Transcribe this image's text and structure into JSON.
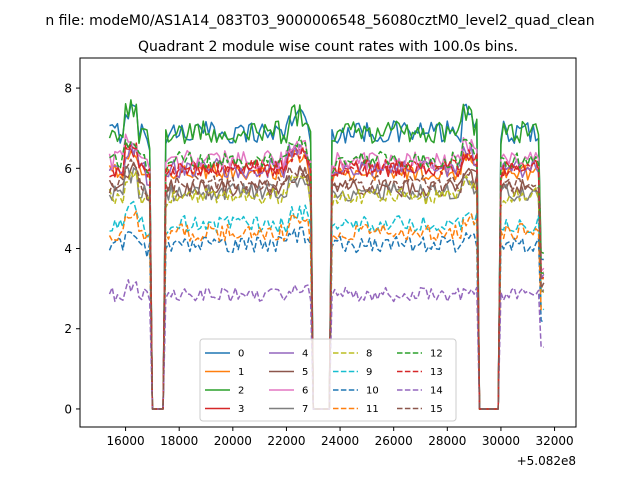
{
  "chart_data": {
    "type": "line",
    "suptitle": "n file: modeM0/AS1A14_083T03_9000006548_56080cztM0_level2_quad_clean",
    "title": "Quadrant 2 module wise count rates with 100.0s bins.",
    "xlabel": "",
    "ylabel": "",
    "x_offset_label": "+5.082e8",
    "xlim": [
      14300,
      32800
    ],
    "ylim": [
      -0.45,
      8.75
    ],
    "xticks": [
      16000,
      18000,
      20000,
      22000,
      24000,
      26000,
      28000,
      30000,
      32000
    ],
    "xtick_labels": [
      "16000",
      "18000",
      "20000",
      "22000",
      "24000",
      "26000",
      "28000",
      "30000",
      "32000"
    ],
    "yticks": [
      0,
      2,
      4,
      6,
      8
    ],
    "ytick_labels": [
      "0",
      "2",
      "4",
      "6",
      "8"
    ],
    "legend": {
      "placement": "lower-center",
      "columns": 4
    },
    "data_start": 15400,
    "data_end": 31600,
    "bin_width": 100,
    "gaps": [
      [
        17000,
        17400
      ],
      [
        23000,
        23600
      ],
      [
        29200,
        29900
      ]
    ],
    "series": [
      {
        "name": "0",
        "color": "#1f77b4",
        "dashed": false,
        "level": 6.9,
        "noise": 0.28
      },
      {
        "name": "1",
        "color": "#ff7f0e",
        "dashed": false,
        "level": 5.9,
        "noise": 0.2
      },
      {
        "name": "2",
        "color": "#2ca02c",
        "dashed": false,
        "level": 6.9,
        "noise": 0.28
      },
      {
        "name": "3",
        "color": "#d62728",
        "dashed": false,
        "level": 6.0,
        "noise": 0.22
      },
      {
        "name": "4",
        "color": "#9467bd",
        "dashed": false,
        "level": 6.0,
        "noise": 0.25
      },
      {
        "name": "5",
        "color": "#8c564b",
        "dashed": false,
        "level": 5.5,
        "noise": 0.22
      },
      {
        "name": "6",
        "color": "#e377c2",
        "dashed": false,
        "level": 6.2,
        "noise": 0.25
      },
      {
        "name": "7",
        "color": "#7f7f7f",
        "dashed": false,
        "level": 5.4,
        "noise": 0.22
      },
      {
        "name": "8",
        "color": "#bcbd22",
        "dashed": true,
        "level": 5.3,
        "noise": 0.22
      },
      {
        "name": "9",
        "color": "#17becf",
        "dashed": true,
        "level": 4.6,
        "noise": 0.22
      },
      {
        "name": "10",
        "color": "#1f77b4",
        "dashed": true,
        "level": 4.1,
        "noise": 0.2
      },
      {
        "name": "11",
        "color": "#ff7f0e",
        "dashed": true,
        "level": 4.4,
        "noise": 0.22
      },
      {
        "name": "12",
        "color": "#2ca02c",
        "dashed": true,
        "level": 6.2,
        "noise": 0.22
      },
      {
        "name": "13",
        "color": "#d62728",
        "dashed": true,
        "level": 6.0,
        "noise": 0.22
      },
      {
        "name": "14",
        "color": "#9467bd",
        "dashed": true,
        "level": 2.85,
        "noise": 0.18
      },
      {
        "name": "15",
        "color": "#8c564b",
        "dashed": true,
        "level": 5.6,
        "noise": 0.22
      }
    ]
  }
}
